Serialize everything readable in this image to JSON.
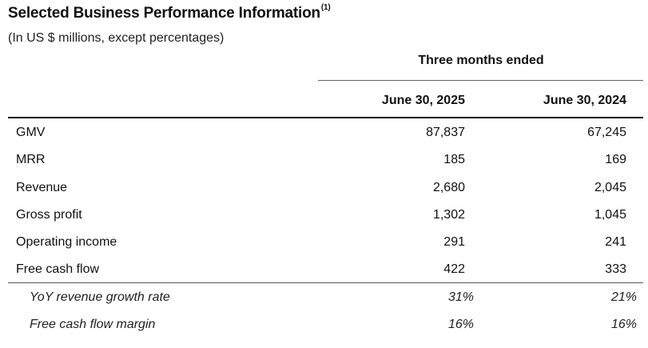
{
  "heading": {
    "title": "Selected Business Performance Information",
    "footnote": "(1)",
    "subtitle": "(In US $ millions, except percentages)"
  },
  "table": {
    "period_header": "Three months ended",
    "columns": [
      "June 30, 2025",
      "June 30, 2024"
    ],
    "rows": [
      {
        "label": "GMV",
        "v2025": "87,837",
        "v2024": "67,245"
      },
      {
        "label": "MRR",
        "v2025": "185",
        "v2024": "169"
      },
      {
        "label": "Revenue",
        "v2025": "2,680",
        "v2024": "2,045"
      },
      {
        "label": "Gross profit",
        "v2025": "1,302",
        "v2024": "1,045"
      },
      {
        "label": "Operating income",
        "v2025": "291",
        "v2024": "241"
      },
      {
        "label": "Free cash flow",
        "v2025": "422",
        "v2024": "333"
      }
    ],
    "ratio_rows": [
      {
        "label": "YoY revenue growth rate",
        "v2025": "31%",
        "v2024": "21%"
      },
      {
        "label": "Free cash flow margin",
        "v2025": "16%",
        "v2024": "16%"
      }
    ]
  }
}
